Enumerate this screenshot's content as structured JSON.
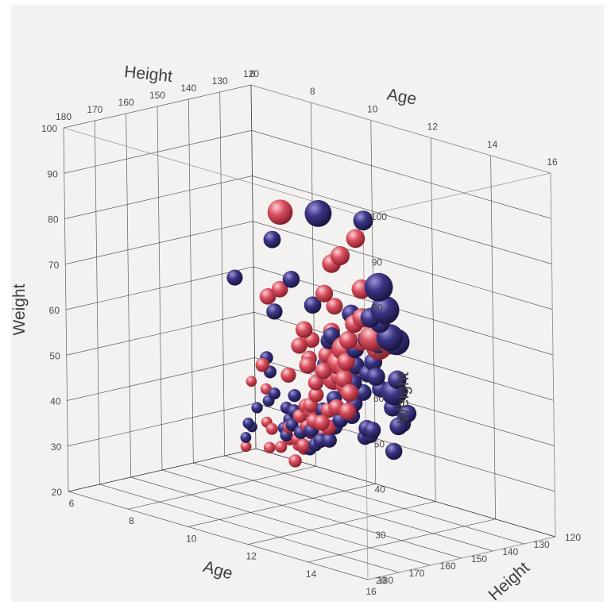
{
  "chart_data": {
    "type": "scatter",
    "projection": "3d",
    "axes": {
      "x": {
        "label": "Age",
        "range": [
          6,
          16
        ],
        "ticks": [
          6,
          8,
          10,
          12,
          14,
          16
        ]
      },
      "y": {
        "label": "Height",
        "range": [
          120,
          180
        ],
        "ticks": [
          120,
          130,
          140,
          150,
          160,
          170,
          180
        ]
      },
      "z": {
        "label": "Weight",
        "range": [
          20,
          100
        ],
        "ticks": [
          20,
          30,
          40,
          50,
          60,
          70,
          80,
          90,
          100
        ]
      }
    },
    "grid": true,
    "legend": null,
    "colors": {
      "series_a": "#d9505f",
      "series_b": "#3b3585",
      "background": "#f3f2f0"
    },
    "series": [
      {
        "color": "#d9505f",
        "points": [
          [
            6.3,
            126,
            22,
            1
          ],
          [
            6.8,
            124,
            28,
            1
          ],
          [
            7.3,
            128,
            24,
            1
          ],
          [
            6.3,
            124,
            36,
            1
          ],
          [
            7.0,
            126,
            36,
            1
          ],
          [
            8.0,
            131,
            26,
            1
          ],
          [
            7.6,
            130,
            29,
            1
          ],
          [
            8.6,
            134,
            32,
            1
          ],
          [
            8.5,
            133,
            29,
            1
          ],
          [
            9.0,
            131,
            31,
            1
          ],
          [
            9.2,
            137,
            31,
            1
          ],
          [
            9.6,
            138,
            35,
            1
          ],
          [
            8.7,
            132,
            28,
            1
          ],
          [
            9.3,
            136,
            29,
            1
          ],
          [
            9.8,
            142,
            38,
            1
          ],
          [
            10.1,
            143,
            41,
            1
          ],
          [
            10.6,
            145,
            39,
            1
          ],
          [
            10.7,
            143,
            36,
            1
          ],
          [
            10.8,
            148,
            42,
            1
          ],
          [
            11.0,
            150,
            44,
            1
          ],
          [
            11.3,
            151,
            47,
            1
          ],
          [
            9.2,
            148,
            49,
            1
          ],
          [
            9.1,
            137,
            26,
            1
          ],
          [
            9.7,
            140,
            31,
            1
          ],
          [
            10.9,
            148,
            40,
            1
          ],
          [
            11.6,
            150,
            44,
            1
          ],
          [
            10.8,
            155,
            51,
            1
          ],
          [
            11.4,
            152,
            50,
            1
          ],
          [
            11.8,
            152,
            41,
            1
          ],
          [
            12.0,
            156,
            43,
            1
          ],
          [
            12.4,
            155,
            47,
            1
          ],
          [
            11.7,
            160,
            60,
            1
          ],
          [
            12.5,
            165,
            58,
            1
          ],
          [
            12.5,
            160,
            56,
            1
          ],
          [
            12.5,
            166,
            66,
            1
          ],
          [
            11.5,
            155,
            56,
            1
          ],
          [
            12.0,
            152,
            52,
            2
          ],
          [
            12.8,
            158,
            55,
            1
          ],
          [
            13.0,
            155,
            55,
            1
          ],
          [
            13.2,
            160,
            54,
            1
          ],
          [
            13.6,
            164,
            57,
            1
          ],
          [
            14.0,
            166,
            55,
            1
          ],
          [
            13.4,
            162,
            63,
            2
          ],
          [
            13.3,
            160,
            58,
            2
          ],
          [
            13.8,
            163,
            65,
            1
          ],
          [
            14.4,
            166,
            67,
            1
          ],
          [
            14.6,
            170,
            72,
            1
          ],
          [
            15.0,
            166,
            67,
            2
          ],
          [
            15.4,
            166,
            69,
            2
          ],
          [
            14.4,
            170,
            68,
            1
          ],
          [
            11.3,
            166,
            71,
            1
          ],
          [
            11.6,
            165,
            73,
            1
          ],
          [
            11.8,
            157,
            61,
            1
          ],
          [
            12.4,
            158,
            59,
            1
          ],
          [
            13.4,
            168,
            76,
            1
          ],
          [
            12.8,
            158,
            58,
            2
          ],
          [
            13.0,
            162,
            66,
            1
          ],
          [
            12.9,
            160,
            71,
            1
          ],
          [
            14.5,
            176,
            86,
            1
          ],
          [
            15.0,
            178,
            89,
            1
          ],
          [
            15.5,
            176,
            76,
            1
          ],
          [
            15.7,
            178,
            83,
            1
          ],
          [
            12.8,
            176,
            94,
            2
          ],
          [
            15.0,
            173,
            92,
            1
          ],
          [
            14.0,
            167,
            62,
            1
          ],
          [
            13.4,
            161,
            49,
            1
          ],
          [
            15.2,
            170,
            70,
            2
          ]
        ]
      },
      {
        "color": "#3b3585",
        "points": [
          [
            6.3,
            124,
            26,
            1
          ],
          [
            6.6,
            128,
            28,
            1
          ],
          [
            6.9,
            128,
            32,
            1
          ],
          [
            6.3,
            126,
            24,
            1
          ],
          [
            7.5,
            130,
            35,
            1
          ],
          [
            8.0,
            130,
            30,
            1
          ],
          [
            7.7,
            130,
            37,
            1
          ],
          [
            8.2,
            131,
            35,
            1
          ],
          [
            8.4,
            132,
            33,
            1
          ],
          [
            8.5,
            134,
            30,
            1
          ],
          [
            8.8,
            135,
            33,
            1
          ],
          [
            8.3,
            137,
            44,
            1
          ],
          [
            9.0,
            136,
            40,
            1
          ],
          [
            9.4,
            140,
            38,
            1
          ],
          [
            8.5,
            140,
            48,
            1
          ],
          [
            9.4,
            138,
            33,
            1
          ],
          [
            9.7,
            138,
            30,
            1
          ],
          [
            10.1,
            140,
            32,
            1
          ],
          [
            10.4,
            141,
            35,
            1
          ],
          [
            10.6,
            143,
            36,
            1
          ],
          [
            10.8,
            145,
            35,
            1
          ],
          [
            11.2,
            146,
            36,
            1
          ],
          [
            10.6,
            146,
            37,
            1
          ],
          [
            10.9,
            146,
            41,
            1
          ],
          [
            11.2,
            148,
            43,
            1
          ],
          [
            11.6,
            148,
            40,
            1
          ],
          [
            12.1,
            151,
            43,
            1
          ],
          [
            12.6,
            152,
            45,
            1
          ],
          [
            13.3,
            154,
            44,
            1
          ],
          [
            13.8,
            157,
            45,
            1
          ],
          [
            11.5,
            150,
            54,
            1
          ],
          [
            11.9,
            150,
            52,
            1
          ],
          [
            12.2,
            151,
            52,
            1
          ],
          [
            12.7,
            154,
            57,
            1
          ],
          [
            13.1,
            157,
            60,
            1
          ],
          [
            12.8,
            154,
            52,
            1
          ],
          [
            12.7,
            152,
            49,
            1
          ],
          [
            13.3,
            155,
            52,
            1
          ],
          [
            14.2,
            158,
            55,
            1
          ],
          [
            14.7,
            159,
            52,
            1
          ],
          [
            15.3,
            160,
            52,
            1
          ],
          [
            15.1,
            161,
            49,
            1
          ],
          [
            13.7,
            162,
            56,
            1
          ],
          [
            14.2,
            166,
            65,
            1
          ],
          [
            14.6,
            166,
            68,
            1
          ],
          [
            15.1,
            167,
            68,
            1
          ],
          [
            15.8,
            168,
            70,
            2
          ],
          [
            14.7,
            165,
            63,
            1
          ],
          [
            14.2,
            162,
            59,
            1
          ],
          [
            13.4,
            159,
            55,
            1
          ],
          [
            13.0,
            155,
            49,
            1
          ],
          [
            15.6,
            166,
            61,
            1
          ],
          [
            15.5,
            166,
            58,
            2
          ],
          [
            15.1,
            168,
            61,
            1
          ],
          [
            16.0,
            172,
            72,
            2
          ],
          [
            16.1,
            176,
            76,
            1
          ],
          [
            13.0,
            162,
            65,
            1
          ],
          [
            12.8,
            166,
            72,
            1
          ],
          [
            12.3,
            168,
            77,
            1
          ],
          [
            12.1,
            172,
            86,
            1
          ],
          [
            14.6,
            181,
            98,
            2
          ],
          [
            16.0,
            180,
            99,
            1
          ],
          [
            16.7,
            182,
            86,
            2
          ],
          [
            16.8,
            181,
            81,
            2
          ],
          [
            16.2,
            180,
            78,
            1
          ],
          [
            10.2,
            166,
            73,
            1
          ],
          [
            11.2,
            163,
            67,
            1
          ],
          [
            14.7,
            156,
            48,
            1
          ],
          [
            13.2,
            152,
            42,
            1
          ],
          [
            12.4,
            146,
            39,
            1
          ],
          [
            14.5,
            170,
            74,
            1
          ],
          [
            13.8,
            162,
            60,
            1
          ],
          [
            11.8,
            150,
            47,
            1
          ],
          [
            14.3,
            155,
            41,
            1
          ],
          [
            12.7,
            160,
            63,
            1
          ]
        ]
      }
    ]
  }
}
